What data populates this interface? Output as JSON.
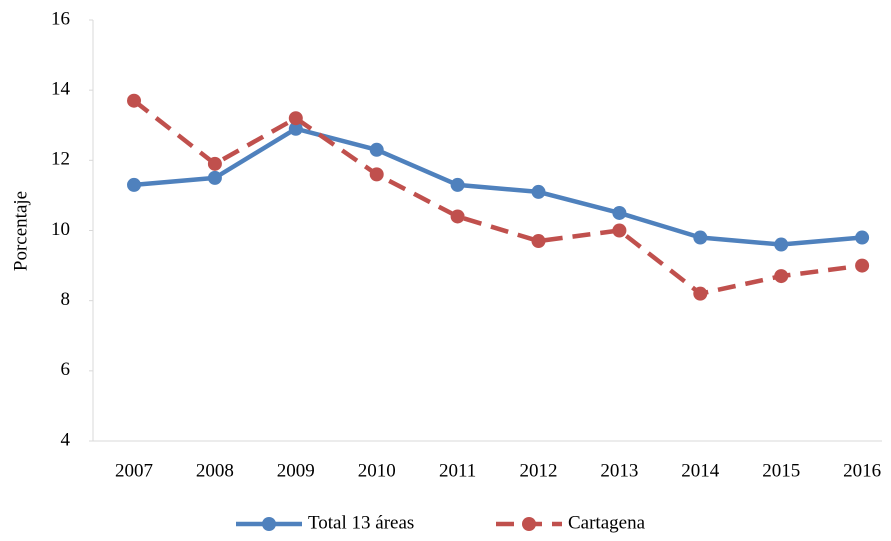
{
  "chart_data": {
    "type": "line",
    "y_label": "Porcentaje",
    "categories": [
      "2007",
      "2008",
      "2009",
      "2010",
      "2011",
      "2012",
      "2013",
      "2014",
      "2015",
      "2016"
    ],
    "series": [
      {
        "name": "Total 13 áreas",
        "color": "#4f81bd",
        "dash": "solid",
        "values": [
          11.3,
          11.5,
          12.9,
          12.3,
          11.3,
          11.1,
          10.5,
          9.8,
          9.6,
          9.8
        ]
      },
      {
        "name": "Cartagena",
        "color": "#c0504d",
        "dash": "dashed",
        "values": [
          13.7,
          11.9,
          13.2,
          11.6,
          10.4,
          9.7,
          10.0,
          8.2,
          8.7,
          9.0
        ]
      }
    ],
    "ylim": [
      4,
      16
    ],
    "yticks": [
      4,
      6,
      8,
      10,
      12,
      14,
      16
    ],
    "grid": false,
    "legend": "bottom"
  }
}
